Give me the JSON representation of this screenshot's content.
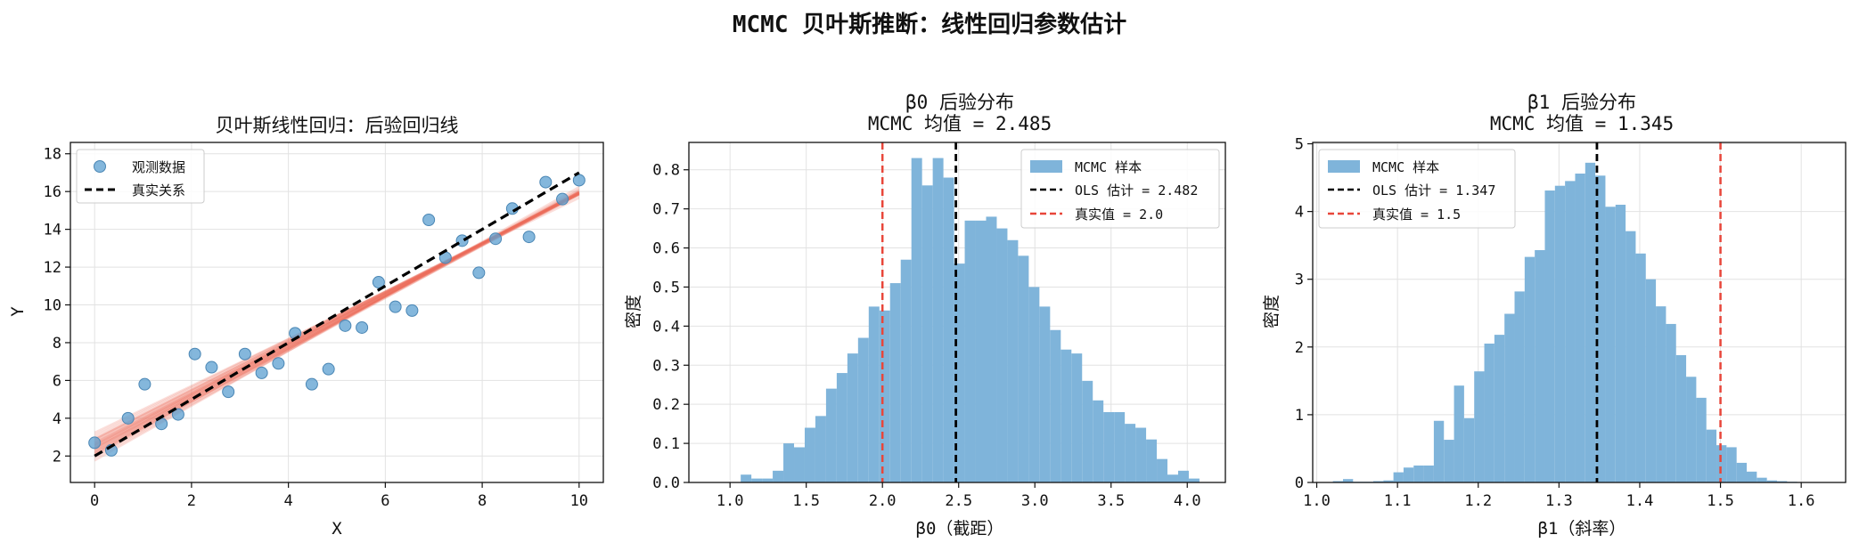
{
  "figure": {
    "suptitle": "MCMC 贝叶斯推断：线性回归参数估计"
  },
  "colors": {
    "scatter": "#5b9fd0",
    "true_line": "#000000",
    "posterior_lines": "#ee6e5c",
    "hist": "#7fb4da",
    "ols": "#000000",
    "true_value": "#e8463a",
    "grid": "#e2e2e2"
  },
  "chart_data": [
    {
      "type": "scatter",
      "title": "贝叶斯线性回归：后验回归线",
      "xlabel": "X",
      "ylabel": "Y",
      "xlim": [
        -0.5,
        10.5
      ],
      "ylim": [
        0.6,
        18.6
      ],
      "xticks": [
        0,
        2,
        4,
        6,
        8,
        10
      ],
      "yticks": [
        2,
        4,
        6,
        8,
        10,
        12,
        14,
        16,
        18
      ],
      "grid": true,
      "legend_position": "upper-left",
      "scatter": {
        "name": "观测数据",
        "x": [
          0.0,
          0.345,
          0.69,
          1.034,
          1.379,
          1.724,
          2.069,
          2.414,
          2.759,
          3.103,
          3.448,
          3.793,
          4.138,
          4.483,
          4.828,
          5.172,
          5.517,
          5.862,
          6.207,
          6.552,
          6.897,
          7.241,
          7.586,
          7.931,
          8.276,
          8.621,
          8.966,
          9.31,
          9.655,
          10.0
        ],
        "y": [
          2.7,
          2.3,
          4.0,
          5.8,
          3.7,
          4.2,
          7.4,
          6.7,
          5.4,
          7.4,
          6.4,
          6.9,
          8.5,
          5.8,
          6.6,
          8.9,
          8.8,
          11.2,
          9.9,
          9.7,
          14.5,
          12.5,
          13.4,
          11.7,
          13.5,
          15.1,
          13.6,
          16.5,
          15.6,
          16.6
        ]
      },
      "true_line": {
        "name": "真实关系",
        "intercept": 2.0,
        "slope": 1.5
      },
      "posterior_lines": {
        "intercepts": [
          2.49,
          2.1,
          2.85,
          2.3,
          2.7,
          1.95,
          3.05,
          2.2,
          2.6,
          2.4,
          2.0,
          2.95,
          2.55,
          2.25,
          2.8,
          2.15,
          2.65,
          2.35,
          2.9,
          2.45,
          1.85,
          3.15,
          2.05,
          2.75,
          2.5,
          2.3,
          2.6,
          2.2,
          2.7,
          2.4,
          3.25,
          1.75,
          2.58,
          2.42,
          2.88,
          2.12
        ],
        "slopes": [
          1.345,
          1.39,
          1.3,
          1.37,
          1.32,
          1.4,
          1.28,
          1.38,
          1.33,
          1.35,
          1.41,
          1.29,
          1.34,
          1.36,
          1.31,
          1.37,
          1.33,
          1.35,
          1.3,
          1.34,
          1.43,
          1.26,
          1.4,
          1.31,
          1.345,
          1.36,
          1.33,
          1.38,
          1.32,
          1.35,
          1.24,
          1.45,
          1.335,
          1.355,
          1.305,
          1.385
        ]
      }
    },
    {
      "type": "histogram",
      "title": "β0 后验分布",
      "subtitle": "MCMC 均值 = 2.485",
      "xlabel": "β0（截距）",
      "ylabel": "密度",
      "xlim": [
        0.73,
        4.25
      ],
      "ylim": [
        0,
        0.87
      ],
      "xticks": [
        1.0,
        1.5,
        2.0,
        2.5,
        3.0,
        3.5,
        4.0
      ],
      "yticks": [
        0.0,
        0.1,
        0.2,
        0.3,
        0.4,
        0.5,
        0.6,
        0.7,
        0.8
      ],
      "grid": true,
      "legend_position": "upper-right",
      "bins": {
        "start": 1.0,
        "width": 0.07
      },
      "values": [
        0.0,
        0.02,
        0.01,
        0.01,
        0.03,
        0.1,
        0.09,
        0.14,
        0.17,
        0.24,
        0.28,
        0.33,
        0.37,
        0.45,
        0.44,
        0.51,
        0.57,
        0.83,
        0.76,
        0.83,
        0.78,
        0.56,
        0.67,
        0.67,
        0.68,
        0.65,
        0.62,
        0.58,
        0.5,
        0.45,
        0.39,
        0.34,
        0.33,
        0.26,
        0.21,
        0.18,
        0.18,
        0.15,
        0.14,
        0.11,
        0.06,
        0.02,
        0.03,
        0.01
      ],
      "ols_value": 2.482,
      "true_value": 2.0,
      "legend": [
        "MCMC 样本",
        "OLS 估计 = 2.482",
        "真实值 = 2.0"
      ]
    },
    {
      "type": "histogram",
      "title": "β1 后验分布",
      "subtitle": "MCMC 均值 = 1.345",
      "xlabel": "β1（斜率）",
      "ylabel": "密度",
      "xlim": [
        0.995,
        1.655
      ],
      "ylim": [
        0,
        5.02
      ],
      "xticks": [
        1.0,
        1.1,
        1.2,
        1.3,
        1.4,
        1.5,
        1.6
      ],
      "yticks": [
        0,
        1,
        2,
        3,
        4,
        5
      ],
      "grid": true,
      "legend_position": "upper-left",
      "bins": {
        "start": 1.02,
        "width": 0.0125
      },
      "values": [
        0.02,
        0.05,
        0.01,
        0.01,
        0.02,
        0.03,
        0.15,
        0.22,
        0.25,
        0.25,
        0.91,
        0.63,
        1.43,
        0.95,
        1.64,
        2.05,
        2.18,
        2.49,
        2.82,
        3.33,
        3.43,
        4.31,
        4.38,
        4.45,
        4.56,
        4.72,
        4.53,
        4.07,
        4.1,
        3.71,
        3.38,
        3.0,
        2.6,
        2.34,
        1.88,
        1.56,
        1.25,
        0.78,
        0.55,
        0.52,
        0.29,
        0.16,
        0.07,
        0.03,
        0.02,
        0.01
      ],
      "ols_value": 1.347,
      "true_value": 1.5,
      "legend": [
        "MCMC 样本",
        "OLS 估计 = 1.347",
        "真实值 = 1.5"
      ]
    }
  ]
}
